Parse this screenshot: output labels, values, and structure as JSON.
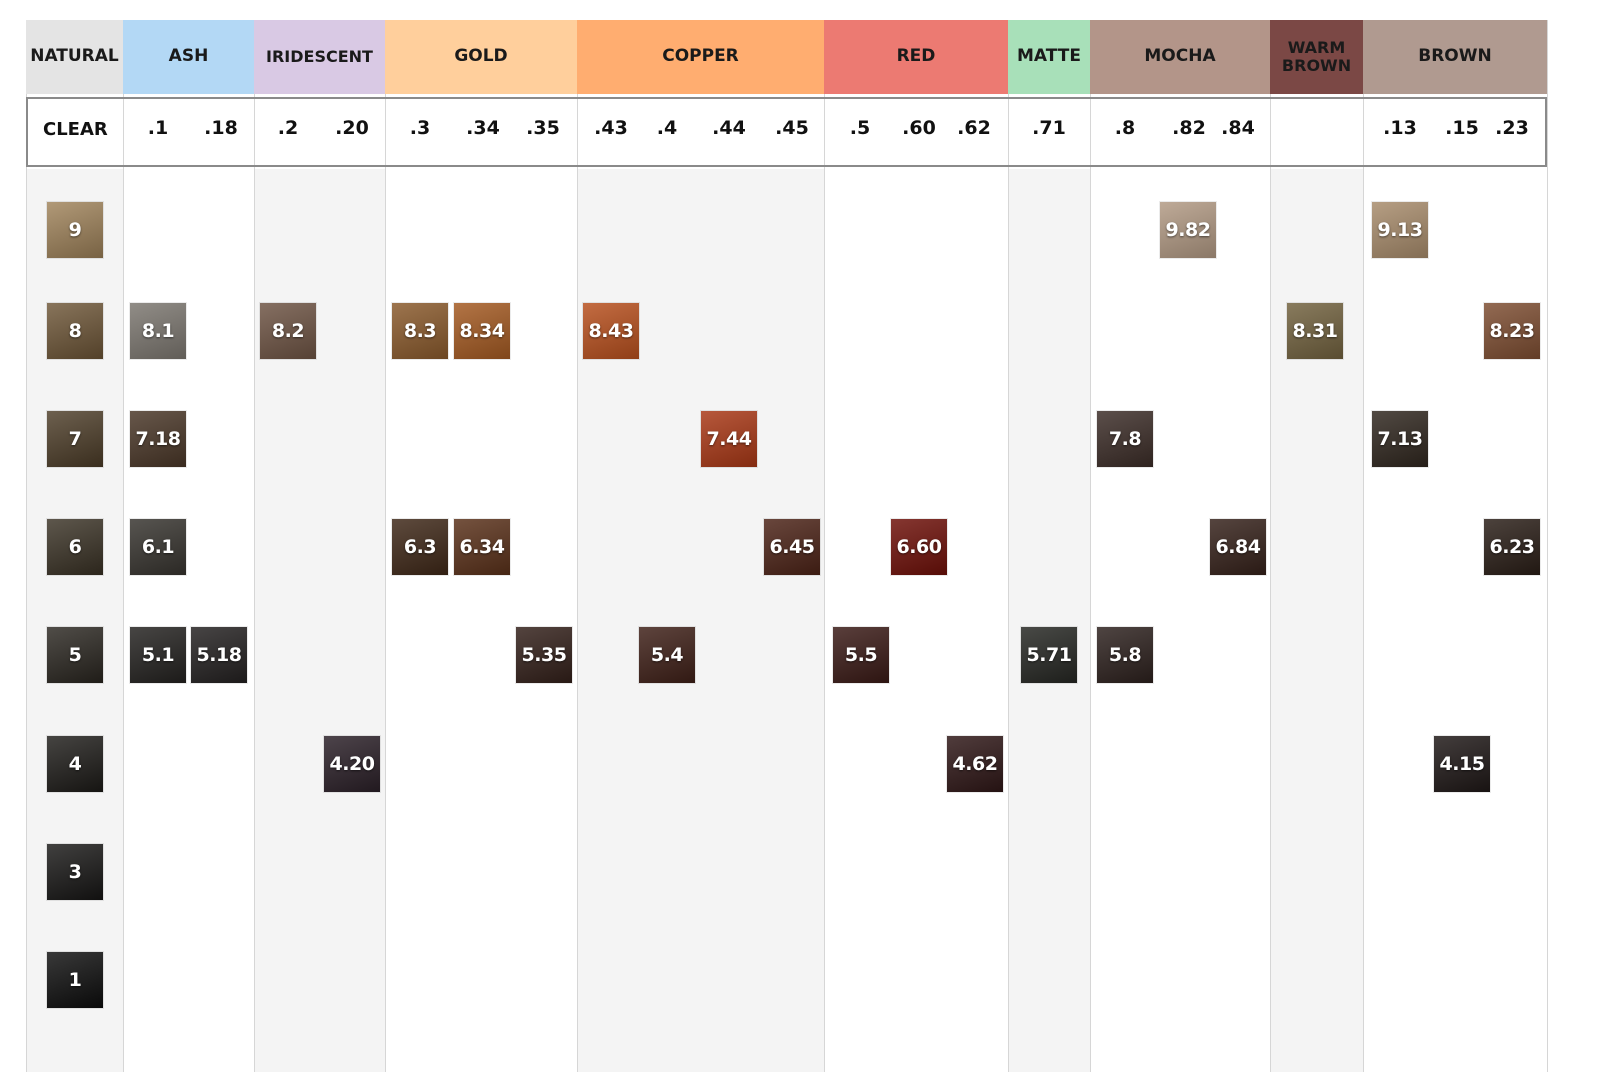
{
  "natural_header": "NATURAL",
  "clear_label": "CLEAR",
  "families": [
    {
      "name": "NATURAL",
      "color": "#e4e4e4",
      "codes": []
    },
    {
      "name": "ASH",
      "color": "#b3d8f5",
      "codes": [
        ".1",
        ".18"
      ]
    },
    {
      "name": "IRIDESCENT",
      "color": "#d9c9e4",
      "codes": [
        ".2",
        ".20"
      ]
    },
    {
      "name": "GOLD",
      "color": "#ffcf9c",
      "codes": [
        ".3",
        ".34",
        ".35"
      ]
    },
    {
      "name": "COPPER",
      "color": "#ffad70",
      "codes": [
        ".43",
        ".4",
        ".44",
        ".45"
      ]
    },
    {
      "name": "RED",
      "color": "#ec7a72",
      "codes": [
        ".5",
        ".60",
        ".62"
      ]
    },
    {
      "name": "MATTE",
      "color": "#a8e0b9",
      "codes": [
        ".71"
      ]
    },
    {
      "name": "MOCHA",
      "color": "#b39589",
      "codes": [
        ".8",
        ".82",
        ".84"
      ]
    },
    {
      "name": "WARM BROWN",
      "color": "#7b4845",
      "codes": []
    },
    {
      "name": "BROWN",
      "color": "#b09a90",
      "codes": [
        ".13",
        ".15",
        ".23"
      ]
    }
  ],
  "chart_data": {
    "type": "table",
    "levels": [
      "9",
      "8",
      "7",
      "6",
      "5",
      "4",
      "3",
      "1"
    ],
    "natural_swatches": [
      {
        "label": "9",
        "color": "#a0835a"
      },
      {
        "label": "8",
        "color": "#6e5637"
      },
      {
        "label": "7",
        "color": "#4d3d28"
      },
      {
        "label": "6",
        "color": "#3a3225"
      },
      {
        "label": "5",
        "color": "#2a2620"
      },
      {
        "label": "4",
        "color": "#1d1b18"
      },
      {
        "label": "3",
        "color": "#171615"
      },
      {
        "label": "1",
        "color": "#0d0d0d"
      }
    ],
    "swatches": [
      {
        "label": "9.82",
        "family": "MOCHA",
        "code": ".82",
        "level": "9",
        "color": "#b29a84"
      },
      {
        "label": "9.13",
        "family": "BROWN",
        "code": ".13",
        "level": "9",
        "color": "#a88c6c"
      },
      {
        "label": "8.1",
        "family": "ASH",
        "code": ".1",
        "level": "8",
        "color": "#7c7770"
      },
      {
        "label": "8.2",
        "family": "IRIDESCENT",
        "code": ".2",
        "level": "8",
        "color": "#6e5444"
      },
      {
        "label": "8.3",
        "family": "GOLD",
        "code": ".3",
        "level": "8",
        "color": "#8a5a2c"
      },
      {
        "label": "8.34",
        "family": "GOLD",
        "code": ".34",
        "level": "8",
        "color": "#a45a22"
      },
      {
        "label": "8.43",
        "family": "COPPER",
        "code": ".43",
        "level": "8",
        "color": "#b8501e"
      },
      {
        "label": "8.31",
        "family": "WARM BROWN",
        "code": "",
        "level": "8",
        "color": "#72623f"
      },
      {
        "label": "8.23",
        "family": "BROWN",
        "code": ".23",
        "level": "8",
        "color": "#7e4e32"
      },
      {
        "label": "7.18",
        "family": "ASH",
        "code": ".18",
        "level": "7",
        "color": "#4a3728"
      },
      {
        "label": "7.44",
        "family": "COPPER",
        "code": ".44",
        "level": "7",
        "color": "#a93816"
      },
      {
        "label": "7.8",
        "family": "MOCHA",
        "code": ".8",
        "level": "7",
        "color": "#3c2d28"
      },
      {
        "label": "7.13",
        "family": "BROWN",
        "code": ".13",
        "level": "7",
        "color": "#30271f"
      },
      {
        "label": "6.1",
        "family": "ASH",
        "code": ".1",
        "level": "6",
        "color": "#37342f"
      },
      {
        "label": "6.3",
        "family": "GOLD",
        "code": ".3",
        "level": "6",
        "color": "#3f2818"
      },
      {
        "label": "6.34",
        "family": "GOLD",
        "code": ".34",
        "level": "6",
        "color": "#5a311a"
      },
      {
        "label": "6.45",
        "family": "COPPER",
        "code": ".45",
        "level": "6",
        "color": "#4c2317"
      },
      {
        "label": "6.60",
        "family": "RED",
        "code": ".60",
        "level": "6",
        "color": "#6e1009"
      },
      {
        "label": "6.84",
        "family": "MOCHA",
        "code": ".84",
        "level": "6",
        "color": "#35211a"
      },
      {
        "label": "6.23",
        "family": "BROWN",
        "code": ".23",
        "level": "6",
        "color": "#2a1e17"
      },
      {
        "label": "5.1",
        "family": "ASH",
        "code": ".1",
        "level": "5",
        "color": "#242220"
      },
      {
        "label": "5.18",
        "family": "ASH",
        "code": ".18",
        "level": "5",
        "color": "#242121"
      },
      {
        "label": "5.35",
        "family": "GOLD",
        "code": ".35",
        "level": "5",
        "color": "#33201a"
      },
      {
        "label": "5.4",
        "family": "COPPER",
        "code": ".4",
        "level": "5",
        "color": "#3f2018"
      },
      {
        "label": "5.5",
        "family": "RED",
        "code": ".5",
        "level": "5",
        "color": "#3a1a16"
      },
      {
        "label": "5.71",
        "family": "MATTE",
        "code": ".71",
        "level": "5",
        "color": "#262723"
      },
      {
        "label": "5.8",
        "family": "MOCHA",
        "code": ".8",
        "level": "5",
        "color": "#2d211e"
      },
      {
        "label": "4.20",
        "family": "IRIDESCENT",
        "code": ".20",
        "level": "4",
        "color": "#2b2028"
      },
      {
        "label": "4.62",
        "family": "RED",
        "code": ".62",
        "level": "4",
        "color": "#2f1717"
      },
      {
        "label": "4.15",
        "family": "BROWN",
        "code": ".15",
        "level": "4",
        "color": "#1f1817"
      }
    ]
  }
}
